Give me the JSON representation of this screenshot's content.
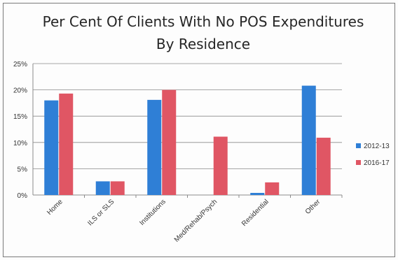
{
  "chart_data": {
    "type": "bar",
    "title_lines": [
      "Per Cent Of Clients With No POS Expenditures",
      "By Residence"
    ],
    "categories": [
      "Home",
      "ILS or SLS",
      "Institutions",
      "Med/Rehab/Psych",
      "Residential",
      "Other"
    ],
    "series": [
      {
        "name": "2012-13",
        "color": "#2f7fd6",
        "values": [
          18.0,
          2.6,
          18.1,
          0,
          0.4,
          20.8
        ]
      },
      {
        "name": "2016-17",
        "color": "#e05664",
        "values": [
          19.3,
          2.6,
          20.0,
          11.1,
          2.4,
          10.9
        ]
      }
    ],
    "ylim": [
      0,
      25
    ],
    "yticks": [
      "0%",
      "5%",
      "10%",
      "15%",
      "20%",
      "25%"
    ],
    "ytick_values": [
      0,
      5,
      10,
      15,
      20,
      25
    ],
    "grid": true,
    "legend_position": "right"
  }
}
